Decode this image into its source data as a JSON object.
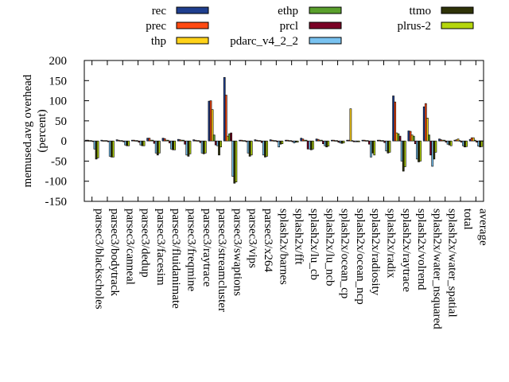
{
  "chart_data": {
    "type": "bar",
    "ylabel": "memused.avg overhead\n(percent)",
    "ylim": [
      -150,
      200
    ],
    "yticks": [
      -150,
      -100,
      -50,
      0,
      50,
      100,
      150,
      200
    ],
    "legend_position": "top",
    "grid": false,
    "categories": [
      "parsec3/blackscholes",
      "parsec3/bodytrack",
      "parsec3/canneal",
      "parsec3/dedup",
      "parsec3/facesim",
      "parsec3/fluidanimate",
      "parsec3/freqmine",
      "parsec3/raytrace",
      "parsec3/streamcluster",
      "parsec3/swaptions",
      "parsec3/vips",
      "parsec3/x264",
      "splash2x/barnes",
      "splash2x/fft",
      "splash2x/lu_cb",
      "splash2x/lu_ncb",
      "splash2x/ocean_cp",
      "splash2x/ocean_ncp",
      "splash2x/radiosity",
      "splash2x/radix",
      "splash2x/raytrace",
      "splash2x/volrend",
      "splash2x/water_nsquared",
      "splash2x/water_spatial",
      "total",
      "average"
    ],
    "series": [
      {
        "name": "rec",
        "color": "#1f3f8f",
        "values": [
          2,
          2,
          3,
          2,
          7,
          7,
          4,
          3,
          99,
          158,
          2,
          3,
          3,
          2,
          7,
          5,
          2,
          2,
          2,
          2,
          112,
          25,
          85,
          5,
          2,
          4
        ]
      },
      {
        "name": "prec",
        "color": "#ff4a12",
        "values": [
          2,
          1,
          2,
          2,
          7,
          6,
          3,
          2,
          100,
          114,
          2,
          2,
          2,
          2,
          5,
          4,
          2,
          2,
          2,
          2,
          97,
          24,
          93,
          3,
          3,
          8
        ]
      },
      {
        "name": "thp",
        "color": "#ffd21a",
        "values": [
          1,
          1,
          1,
          1,
          2,
          2,
          2,
          1,
          78,
          12,
          1,
          1,
          1,
          1,
          2,
          2,
          1,
          80,
          1,
          1,
          20,
          15,
          57,
          2,
          5,
          8
        ]
      },
      {
        "name": "ethp",
        "color": "#5aa02c",
        "values": [
          1,
          1,
          1,
          1,
          2,
          2,
          2,
          1,
          15,
          18,
          1,
          1,
          1,
          1,
          2,
          2,
          1,
          1,
          1,
          1,
          18,
          12,
          15,
          2,
          1,
          2
        ]
      },
      {
        "name": "prcl",
        "color": "#7a0025",
        "values": [
          -1,
          -2,
          -2,
          -3,
          -6,
          -5,
          -8,
          -4,
          -10,
          20,
          -2,
          -4,
          -2,
          -2,
          -20,
          -7,
          -3,
          -2,
          -8,
          -4,
          12,
          -7,
          -35,
          -3,
          -3,
          -3
        ]
      },
      {
        "name": "pdarc_v4_2_2",
        "color": "#79c2f0",
        "values": [
          -20,
          -38,
          -10,
          -10,
          -30,
          -20,
          -35,
          -30,
          -12,
          -88,
          -30,
          -35,
          -15,
          -5,
          -20,
          -12,
          -5,
          -2,
          -40,
          -25,
          -50,
          -45,
          -63,
          -8,
          -12,
          -13
        ]
      },
      {
        "name": "ttmo",
        "color": "#2f3308",
        "values": [
          -45,
          -40,
          -12,
          -12,
          -35,
          -22,
          -38,
          -32,
          -35,
          -105,
          -38,
          -40,
          -8,
          -3,
          -22,
          -15,
          -6,
          -2,
          -30,
          -30,
          -75,
          -52,
          -45,
          -10,
          -15,
          -15
        ]
      },
      {
        "name": "plrus-2",
        "color": "#b5d60c",
        "values": [
          -42,
          -40,
          -12,
          -12,
          -30,
          -22,
          -32,
          -30,
          -15,
          -102,
          -35,
          -38,
          -7,
          -3,
          -20,
          -13,
          -5,
          -2,
          -35,
          -28,
          -64,
          -50,
          -28,
          -12,
          -14,
          -14
        ]
      }
    ]
  }
}
